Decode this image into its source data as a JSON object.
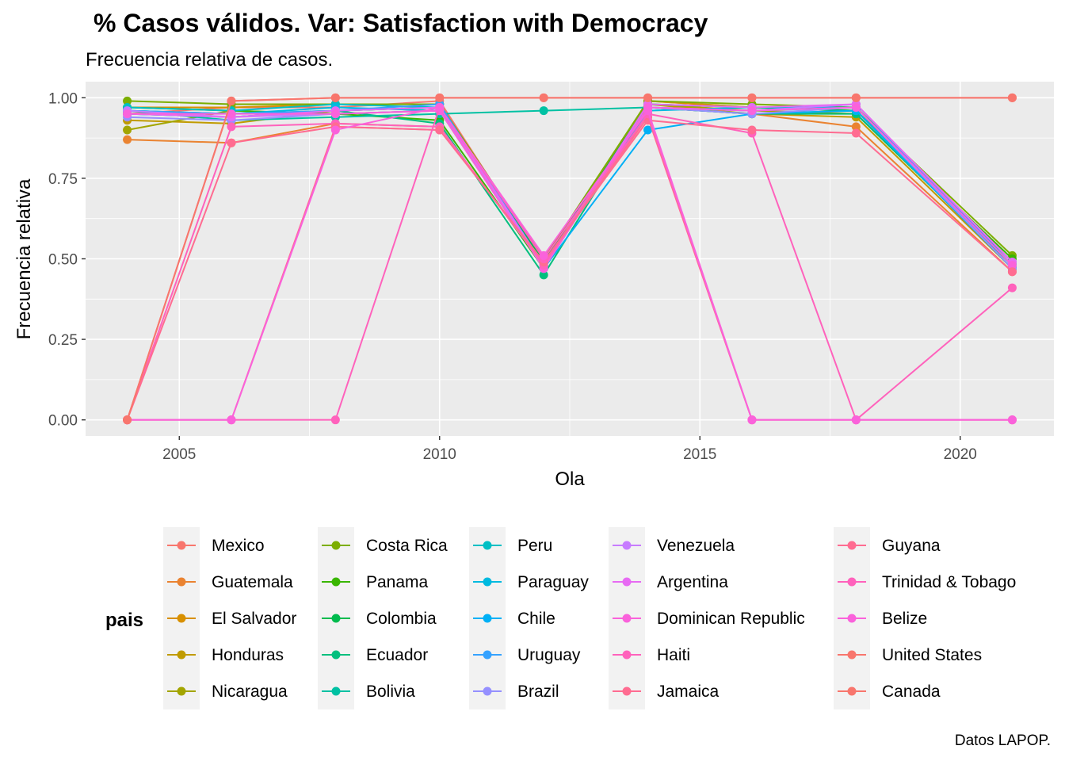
{
  "chart_data": {
    "type": "line",
    "title": "% Casos válidos. Var: Satisfaction with Democracy",
    "subtitle": "Frecuencia relativa de casos.",
    "xlabel": "Ola",
    "ylabel": "Frecuencia relativa",
    "caption": "Datos LAPOP.",
    "legend_title": "pais",
    "legend_position": "bottom",
    "grid": true,
    "xlim": [
      2003.2,
      2021.8
    ],
    "ylim": [
      -0.05,
      1.05
    ],
    "x_ticks": [
      2005,
      2010,
      2015,
      2020
    ],
    "x_tick_labels": [
      "2005",
      "2010",
      "2015",
      "2020"
    ],
    "y_ticks": [
      0,
      0.25,
      0.5,
      0.75,
      1
    ],
    "y_tick_labels": [
      "0.00",
      "0.25",
      "0.50",
      "0.75",
      "1.00"
    ],
    "x": [
      2004,
      2006,
      2008,
      2010,
      2012,
      2014,
      2016,
      2018,
      2021
    ],
    "series": [
      {
        "name": "Mexico",
        "color": "#F8766D",
        "values": [
          0.95,
          0.97,
          0.97,
          0.99,
          0.49,
          0.99,
          0.97,
          0.96,
          0.47
        ]
      },
      {
        "name": "Guatemala",
        "color": "#EA8331",
        "values": [
          0.87,
          0.86,
          0.92,
          0.91,
          0.48,
          0.97,
          0.95,
          0.91,
          0.46
        ]
      },
      {
        "name": "El Salvador",
        "color": "#D89000",
        "values": [
          0.97,
          0.97,
          0.98,
          0.98,
          0.49,
          0.99,
          0.97,
          0.96,
          0.47
        ]
      },
      {
        "name": "Honduras",
        "color": "#C09B00",
        "values": [
          0.93,
          0.92,
          0.96,
          0.97,
          0.48,
          0.98,
          0.95,
          0.94,
          0.47
        ]
      },
      {
        "name": "Nicaragua",
        "color": "#A3A500",
        "values": [
          0.9,
          0.96,
          0.95,
          0.96,
          0.47,
          0.98,
          0.96,
          0.95,
          0.48
        ]
      },
      {
        "name": "Costa Rica",
        "color": "#7CAE00",
        "values": [
          0.99,
          0.98,
          0.98,
          0.98,
          0.5,
          0.99,
          0.98,
          0.97,
          0.51
        ]
      },
      {
        "name": "Panama",
        "color": "#39B600",
        "values": [
          0.97,
          0.96,
          0.95,
          0.93,
          0.47,
          0.98,
          0.97,
          0.96,
          0.5
        ]
      },
      {
        "name": "Colombia",
        "color": "#00BB4E",
        "values": [
          0.96,
          0.95,
          0.96,
          0.97,
          0.49,
          0.98,
          0.97,
          0.96,
          0.49
        ]
      },
      {
        "name": "Ecuador",
        "color": "#00BF7D",
        "values": [
          0.95,
          0.94,
          0.96,
          0.92,
          0.45,
          0.97,
          0.95,
          0.95,
          0.48
        ]
      },
      {
        "name": "Bolivia",
        "color": "#00C1A3",
        "values": [
          0.96,
          0.93,
          0.94,
          0.95,
          0.96,
          0.97,
          0.95,
          0.96,
          0.48
        ]
      },
      {
        "name": "Peru",
        "color": "#00BFC4",
        "values": [
          0.97,
          0.96,
          0.98,
          0.97,
          0.47,
          0.97,
          0.96,
          0.97,
          0.48
        ]
      },
      {
        "name": "Paraguay",
        "color": "#00BAE0",
        "values": [
          0.96,
          0.95,
          0.97,
          0.96,
          0.48,
          0.96,
          0.97,
          0.97,
          0.49
        ]
      },
      {
        "name": "Chile",
        "color": "#00B0F6",
        "values": [
          0.95,
          0.94,
          0.96,
          0.97,
          0.47,
          0.9,
          0.95,
          0.96,
          0.47
        ]
      },
      {
        "name": "Uruguay",
        "color": "#35A2FF",
        "values": [
          0.96,
          0.95,
          0.96,
          0.98,
          0.48,
          0.97,
          0.96,
          0.98,
          0.48
        ]
      },
      {
        "name": "Brazil",
        "color": "#9590FF",
        "values": [
          0.94,
          0.93,
          0.95,
          0.96,
          0.47,
          0.97,
          0.95,
          0.97,
          0.47
        ]
      },
      {
        "name": "Venezuela",
        "color": "#C77CFF",
        "values": [
          0.96,
          0.94,
          0.95,
          0.96,
          0.48,
          0.97,
          0.96,
          0.98,
          0.49
        ]
      },
      {
        "name": "Argentina",
        "color": "#E76BF3",
        "values": [
          0.95,
          0.94,
          0.96,
          0.97,
          0.48,
          0.98,
          0.97,
          0.98,
          0.49
        ]
      },
      {
        "name": "Dominican Republic",
        "color": "#FA62DB",
        "values": [
          0.95,
          0.95,
          0.95,
          0.96,
          0.47,
          0.97,
          0.96,
          0.97,
          0.48
        ]
      },
      {
        "name": "Haiti",
        "color": "#FF62BC",
        "values": [
          0.0,
          0.91,
          0.92,
          0.91,
          0.48,
          0.95,
          0.89,
          0.0,
          0.41
        ]
      },
      {
        "name": "Jamaica",
        "color": "#FF6C91",
        "values": [
          0.0,
          0.86,
          0.91,
          0.9,
          0.49,
          0.93,
          0.9,
          0.89,
          0.46
        ]
      },
      {
        "name": "Guyana",
        "color": "#FF6C91",
        "values": [
          0.0,
          0.0,
          0.91,
          0.9,
          0.49,
          0.94,
          0.0,
          0.0,
          0.0
        ]
      },
      {
        "name": "Trinidad & Tobago",
        "color": "#FF62BC",
        "values": [
          0.0,
          0.0,
          0.0,
          0.97,
          0.5,
          0.95,
          0.0,
          0.0,
          0.0
        ]
      },
      {
        "name": "Belize",
        "color": "#FA62DB",
        "values": [
          0.0,
          0.0,
          0.9,
          0.97,
          0.51,
          0.96,
          0.0,
          0.0,
          0.0
        ]
      },
      {
        "name": "United States",
        "color": "#F8766D",
        "values": [
          0.0,
          0.99,
          1.0,
          1.0,
          1.0,
          1.0,
          1.0,
          1.0,
          1.0
        ]
      },
      {
        "name": "Canada",
        "color": "#F8766D",
        "values": [
          0.0,
          0.99,
          1.0,
          1.0,
          1.0,
          1.0,
          1.0,
          1.0,
          1.0
        ]
      }
    ]
  }
}
